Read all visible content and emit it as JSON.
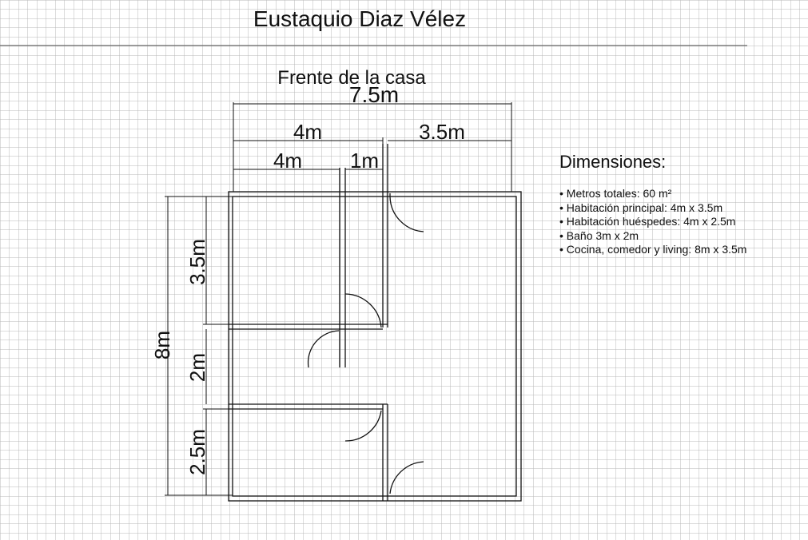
{
  "title": "Eustaquio Diaz Vélez",
  "subtitle": "Frente de la casa",
  "dimensions": {
    "heading": "Dimensiones:",
    "items": [
      "Metros totales: 60 m²",
      "Habitación principal: 4m x 3.5m",
      "Habitación huéspedes: 4m x  2.5m",
      "Baño 3m x 2m",
      "Cocina, comedor y living: 8m x 3.5m"
    ]
  },
  "labels": {
    "total_width": "7.5m",
    "left_width": "4m",
    "right_width": "3.5m",
    "room_width": "4m",
    "hall_width": "1m",
    "total_height": "8m",
    "h1": "3.5m",
    "h2": "2m",
    "h3": "2.5m"
  },
  "colors": {
    "grid": "#b9b9b9",
    "ink": "#111111"
  }
}
